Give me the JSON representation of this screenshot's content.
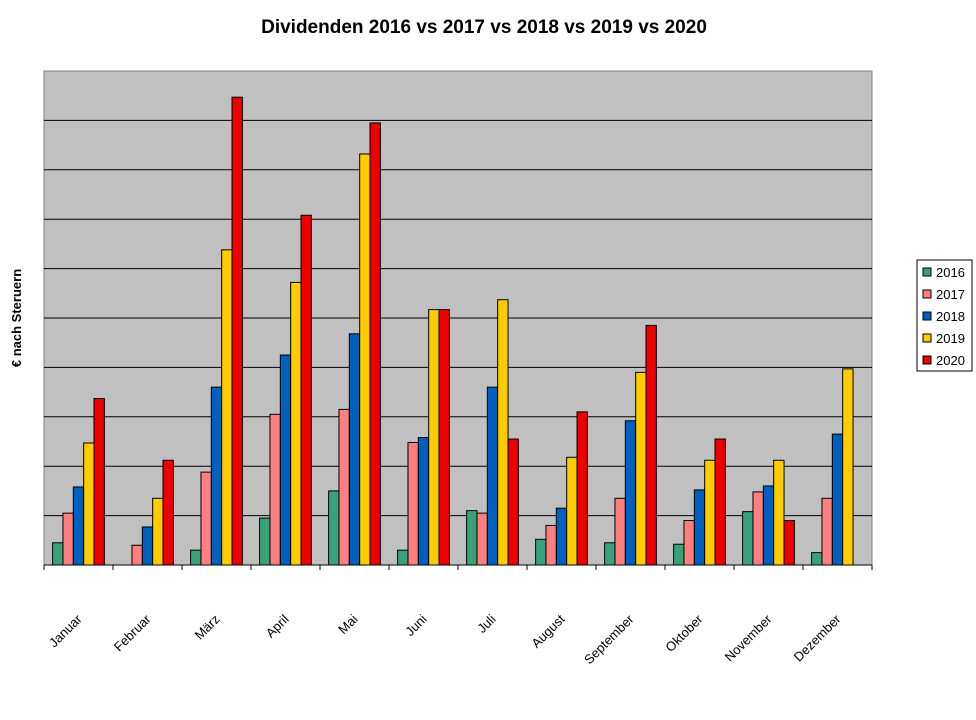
{
  "chart_data": {
    "type": "bar",
    "title": "Dividenden 2016 vs 2017 vs 2018 vs 2019 vs 2020",
    "xlabel": "",
    "ylabel": "€ nach Steruern",
    "ylim": [
      0,
      10
    ],
    "y_ticks_shown": false,
    "grid": true,
    "legend_position": "right",
    "categories": [
      "Januar",
      "Februar",
      "März",
      "April",
      "Mai",
      "Juni",
      "Juli",
      "August",
      "September",
      "Oktober",
      "November",
      "Dezember"
    ],
    "series": [
      {
        "name": "2016",
        "color": "#3aa27a",
        "values": [
          0.45,
          0,
          0.3,
          0.95,
          1.5,
          0.3,
          1.1,
          0.52,
          0.45,
          0.42,
          1.08,
          0.25
        ]
      },
      {
        "name": "2017",
        "color": "#ff7f7f",
        "values": [
          1.05,
          0.4,
          1.88,
          3.05,
          3.15,
          2.48,
          1.05,
          0.8,
          1.35,
          0.9,
          1.48,
          1.35
        ]
      },
      {
        "name": "2018",
        "color": "#0060c0",
        "values": [
          1.58,
          0.77,
          3.6,
          4.25,
          4.68,
          2.58,
          3.6,
          1.15,
          2.92,
          1.52,
          1.6,
          2.65
        ]
      },
      {
        "name": "2019",
        "color": "#ffcc00",
        "values": [
          2.47,
          1.35,
          6.38,
          5.72,
          8.32,
          5.17,
          5.37,
          2.18,
          3.9,
          2.12,
          2.12,
          3.97
        ]
      },
      {
        "name": "2020",
        "color": "#ee0000",
        "values": [
          3.37,
          2.12,
          9.47,
          7.08,
          8.95,
          5.17,
          2.55,
          3.1,
          4.85,
          2.55,
          0.9,
          0
        ]
      }
    ]
  }
}
